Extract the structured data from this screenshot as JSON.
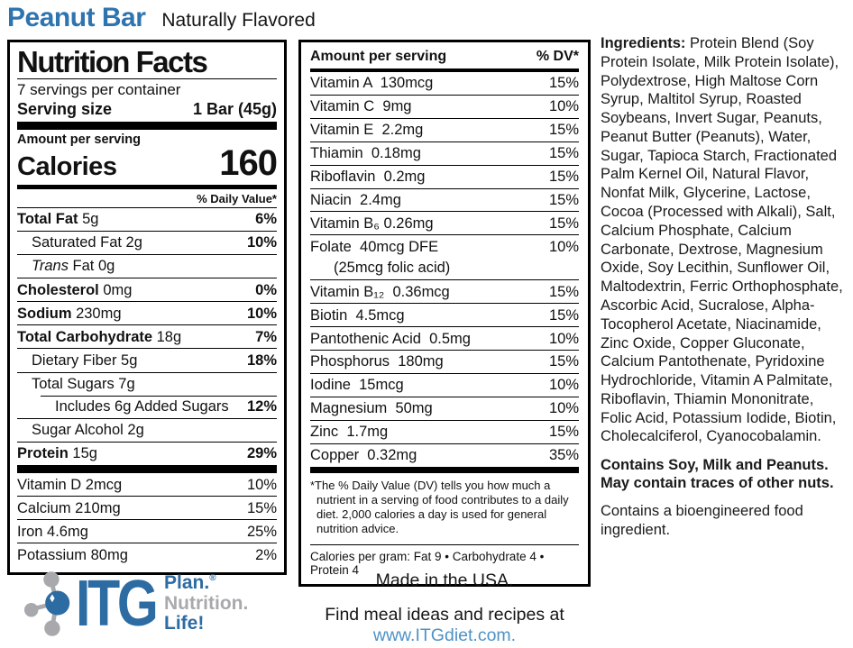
{
  "colors": {
    "brand_blue": "#2e74ae",
    "logo_blue": "#2d6ba3",
    "logo_gray": "#a7a9ac",
    "link_blue": "#4e92c6"
  },
  "header": {
    "title": "Peanut Bar",
    "subtitle": "Naturally Flavored"
  },
  "nutrition_facts": {
    "title": "Nutrition Facts",
    "servings_per_container": "7 servings per container",
    "serving_size_label": "Serving size",
    "serving_size_value": "1 Bar (45g)",
    "amount_per_serving": "Amount per serving",
    "calories_label": "Calories",
    "calories_value": "160",
    "daily_value_header": "% Daily Value*",
    "rows": [
      {
        "bold": "Total Fat",
        "rest": " 5g",
        "dv": "6%",
        "indent": 0
      },
      {
        "bold": "",
        "rest": "Saturated Fat 2g",
        "dv": "10%",
        "indent": 1
      },
      {
        "italic": "Trans",
        "rest": " Fat 0g",
        "dv": "",
        "indent": 1
      },
      {
        "bold": "Cholesterol",
        "rest": " 0mg",
        "dv": "0%",
        "indent": 0
      },
      {
        "bold": "Sodium",
        "rest": " 230mg",
        "dv": "10%",
        "indent": 0
      },
      {
        "bold": "Total Carbohydrate",
        "rest": " 18g",
        "dv": "7%",
        "indent": 0
      },
      {
        "bold": "",
        "rest": "Dietary Fiber 5g",
        "dv": "18%",
        "indent": 1
      },
      {
        "bold": "",
        "rest": "Total Sugars 7g",
        "dv": "",
        "indent": 1
      },
      {
        "bold": "",
        "rest": "Includes 6g Added Sugars",
        "dv": "12%",
        "indent": 2
      },
      {
        "bold": "",
        "rest": "Sugar Alcohol 2g",
        "dv": "",
        "indent": 1
      },
      {
        "bold": "Protein",
        "rest": " 15g",
        "dv": "29%",
        "indent": 0
      }
    ],
    "minerals": [
      {
        "name": "Vitamin D 2mcg",
        "dv": "10%"
      },
      {
        "name": "Calcium 210mg",
        "dv": "15%"
      },
      {
        "name": "Iron 4.6mg",
        "dv": "25%"
      },
      {
        "name": "Potassium 80mg",
        "dv": "2%"
      }
    ]
  },
  "vitamins_panel": {
    "header_left": "Amount per serving",
    "header_right": "% DV*",
    "rows": [
      {
        "name": "Vitamin A  130mcg",
        "dv": "15%"
      },
      {
        "name": "Vitamin C  9mg",
        "dv": "10%"
      },
      {
        "name": "Vitamin E  2.2mg",
        "dv": "15%"
      },
      {
        "name": "Thiamin  0.18mg",
        "dv": "15%"
      },
      {
        "name": "Riboflavin  0.2mg",
        "dv": "15%"
      },
      {
        "name": "Niacin  2.4mg",
        "dv": "15%"
      },
      {
        "name": "Vitamin B₆ 0.26mg",
        "dv": "15%"
      },
      {
        "name": "Folate  40mcg DFE",
        "dv": "10%",
        "sub": "(25mcg folic acid)"
      },
      {
        "name": "Vitamin B₁₂  0.36mcg",
        "dv": "15%"
      },
      {
        "name": "Biotin  4.5mcg",
        "dv": "15%"
      },
      {
        "name": "Pantothenic Acid  0.5mg",
        "dv": "10%"
      },
      {
        "name": "Phosphorus  180mg",
        "dv": "15%"
      },
      {
        "name": "Iodine  15mcg",
        "dv": "10%"
      },
      {
        "name": "Magnesium  50mg",
        "dv": "10%"
      },
      {
        "name": "Zinc  1.7mg",
        "dv": "15%"
      },
      {
        "name": "Copper  0.32mg",
        "dv": "35%"
      }
    ],
    "footnote": "*The % Daily Value (DV) tells you how much a nutrient in a serving of food contributes to a daily diet. 2,000 calories a day is used for general nutrition advice.",
    "calories_per_gram": "Calories per gram: Fat 9 • Carbohydrate 4 • Protein 4"
  },
  "ingredients": {
    "label": "Ingredients:",
    "text": " Protein Blend (Soy Protein Isolate, Milk Protein Isolate), Polydextrose, High Maltose Corn Syrup, Maltitol Syrup, Roasted Soybeans, Invert Sugar, Peanuts, Peanut Butter (Peanuts), Water, Sugar, Tapioca Starch, Fractionated Palm Kernel Oil, Natural Flavor, Nonfat Milk, Glycerine, Lactose, Cocoa (Processed with Alkali), Salt, Calcium Phosphate, Calcium Carbonate, Dextrose, Magnesium Oxide, Soy Lecithin, Sunflower Oil, Maltodextrin, Ferric Orthophosphate, Ascorbic Acid, Sucralose, Alpha-Tocopherol Acetate, Niacinamide, Zinc Oxide, Copper Gluconate, Calcium Pantothenate, Pyridoxine Hydrochloride, Vitamin A Palmitate, Riboflavin, Thiamin Mononitrate, Folic Acid, Potassium Iodide, Biotin, Cholecalciferol, Cyanocobalamin.",
    "allergen_line1": "Contains Soy, Milk and Peanuts.",
    "allergen_line2": "May contain traces of other nuts.",
    "bioengineered": "Contains a bioengineered food ingredient."
  },
  "footer": {
    "logo_text": "ITG",
    "tagline1": "Plan.",
    "tagline1_reg": "®",
    "tagline2": "Nutrition.",
    "tagline3": "Life!",
    "made_in": "Made in the USA.",
    "find_meals": "Find meal ideas and recipes at",
    "website": "www.ITGdiet.com."
  }
}
